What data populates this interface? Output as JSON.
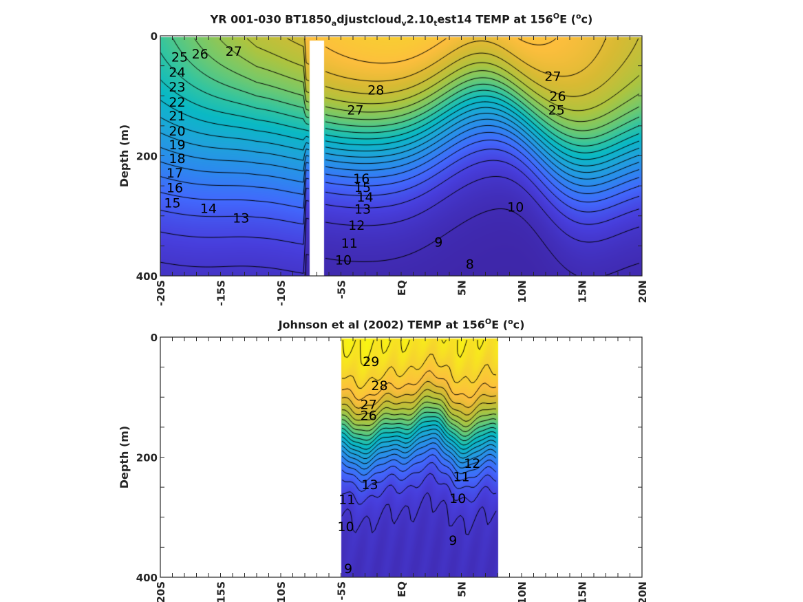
{
  "figure": {
    "panels": [
      {
        "title_parts": [
          {
            "t": "YR 001-030 BT1850",
            "s": ""
          },
          {
            "t": "a",
            "s": "sub"
          },
          {
            "t": "djustcloud",
            "s": ""
          },
          {
            "t": "v",
            "s": "sub"
          },
          {
            "t": "2.10",
            "s": ""
          },
          {
            "t": "t",
            "s": "sub"
          },
          {
            "t": "est14 TEMP at 156",
            "s": ""
          },
          {
            "t": "O",
            "s": "sup"
          },
          {
            "t": "E (",
            "s": ""
          },
          {
            "t": "o",
            "s": "sup"
          },
          {
            "t": "c)",
            "s": ""
          }
        ]
      },
      {
        "title_parts": [
          {
            "t": "Johnson et al (2002) TEMP at 156",
            "s": ""
          },
          {
            "t": "O",
            "s": "sup"
          },
          {
            "t": "E (",
            "s": ""
          },
          {
            "t": "o",
            "s": "sup"
          },
          {
            "t": "c)",
            "s": ""
          }
        ]
      }
    ]
  },
  "chart_data": [
    {
      "type": "heatmap",
      "subtype": "filled-contour",
      "title": "YR 001-030 BT1850_adjustcloud_v2.10_test14 TEMP at 156°E (°c)",
      "xlabel": "",
      "ylabel": "Depth (m)",
      "xlim": [
        -20,
        20
      ],
      "ylim": [
        0,
        400
      ],
      "y_reversed": true,
      "xticks": [
        -20,
        -15,
        -10,
        -5,
        0,
        5,
        10,
        15,
        20
      ],
      "xtick_labels": [
        "-20S",
        "-15S",
        "-10S",
        "-5S",
        "EQ",
        "5N",
        "10N",
        "15N",
        "20N"
      ],
      "yticks": [
        0,
        200,
        400
      ],
      "ytick_labels": [
        "0",
        "200",
        "400"
      ],
      "colormap": "parula",
      "missing_data_bands": [
        [
          -7.6,
          -6.4
        ]
      ],
      "contour_levels": [
        8,
        9,
        10,
        11,
        12,
        13,
        14,
        15,
        16,
        17,
        18,
        19,
        20,
        21,
        22,
        23,
        24,
        25,
        26,
        27,
        28
      ],
      "contour_labels": [
        {
          "value": 25,
          "x": -18.4,
          "y": 35
        },
        {
          "value": 26,
          "x": -16.7,
          "y": 30
        },
        {
          "value": 27,
          "x": -13.9,
          "y": 25
        },
        {
          "value": 24,
          "x": -18.6,
          "y": 60
        },
        {
          "value": 23,
          "x": -18.6,
          "y": 85
        },
        {
          "value": 22,
          "x": -18.6,
          "y": 110
        },
        {
          "value": 21,
          "x": -18.6,
          "y": 133
        },
        {
          "value": 20,
          "x": -18.6,
          "y": 158
        },
        {
          "value": 19,
          "x": -18.6,
          "y": 181
        },
        {
          "value": 18,
          "x": -18.6,
          "y": 204
        },
        {
          "value": 17,
          "x": -18.8,
          "y": 228
        },
        {
          "value": 16,
          "x": -18.8,
          "y": 253
        },
        {
          "value": 15,
          "x": -19.0,
          "y": 278
        },
        {
          "value": 14,
          "x": -16.0,
          "y": 287
        },
        {
          "value": 13,
          "x": -13.3,
          "y": 303
        },
        {
          "value": 28,
          "x": -2.1,
          "y": 90
        },
        {
          "value": 27,
          "x": -3.8,
          "y": 123
        },
        {
          "value": 16,
          "x": -3.3,
          "y": 237
        },
        {
          "value": 15,
          "x": -3.2,
          "y": 252
        },
        {
          "value": 14,
          "x": -3.0,
          "y": 268
        },
        {
          "value": 13,
          "x": -3.2,
          "y": 288
        },
        {
          "value": 12,
          "x": -3.7,
          "y": 315
        },
        {
          "value": 11,
          "x": -4.3,
          "y": 345
        },
        {
          "value": 10,
          "x": -4.8,
          "y": 373
        },
        {
          "value": 9,
          "x": 3.1,
          "y": 343
        },
        {
          "value": 8,
          "x": 5.7,
          "y": 380
        },
        {
          "value": 27,
          "x": 12.6,
          "y": 67
        },
        {
          "value": 26,
          "x": 13.0,
          "y": 100
        },
        {
          "value": 25,
          "x": 12.9,
          "y": 123
        },
        {
          "value": 10,
          "x": 9.5,
          "y": 285
        }
      ]
    },
    {
      "type": "heatmap",
      "subtype": "filled-contour",
      "title": "Johnson et al (2002) TEMP at 156°E (°c)",
      "xlabel": "",
      "ylabel": "Depth (m)",
      "xlim": [
        -20,
        20
      ],
      "ylim": [
        0,
        400
      ],
      "y_reversed": true,
      "xticks": [
        -20,
        -15,
        -10,
        -5,
        0,
        5,
        10,
        15,
        20
      ],
      "xtick_labels": [
        "-20S",
        "-15S",
        "-10S",
        "-5S",
        "EQ",
        "5N",
        "10N",
        "15N",
        "20N"
      ],
      "yticks": [
        0,
        200,
        400
      ],
      "ytick_labels": [
        "0",
        "200",
        "400"
      ],
      "colormap": "parula",
      "data_extent_x": [
        -5,
        8
      ],
      "contour_levels": [
        9,
        10,
        11,
        12,
        13,
        14,
        15,
        16,
        17,
        18,
        19,
        20,
        21,
        22,
        23,
        24,
        25,
        26,
        27,
        28,
        29
      ],
      "contour_labels": [
        {
          "value": 29,
          "x": -2.5,
          "y": 40
        },
        {
          "value": 28,
          "x": -1.8,
          "y": 80
        },
        {
          "value": 27,
          "x": -2.7,
          "y": 112
        },
        {
          "value": 26,
          "x": -2.7,
          "y": 130
        },
        {
          "value": 13,
          "x": -2.6,
          "y": 245
        },
        {
          "value": 11,
          "x": -4.5,
          "y": 270
        },
        {
          "value": 10,
          "x": -4.6,
          "y": 315
        },
        {
          "value": 9,
          "x": -4.4,
          "y": 385
        },
        {
          "value": 12,
          "x": 5.9,
          "y": 210
        },
        {
          "value": 11,
          "x": 5.0,
          "y": 232
        },
        {
          "value": 10,
          "x": 4.7,
          "y": 268
        },
        {
          "value": 9,
          "x": 4.3,
          "y": 338
        }
      ]
    }
  ]
}
